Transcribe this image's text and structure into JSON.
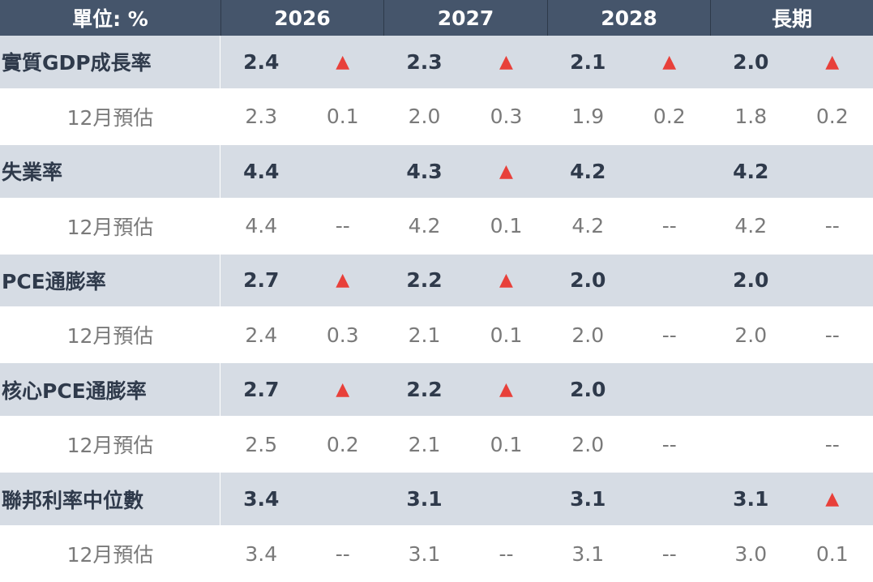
{
  "table": {
    "header": [
      "單位: %",
      "2026",
      "2027",
      "2028",
      "長期"
    ],
    "rows": [
      {
        "label": "實質GDP成長率",
        "cells": [
          "2.4",
          "▲",
          "2.3",
          "▲",
          "2.1",
          "▲",
          "2.0",
          "▲"
        ]
      },
      {
        "label": "12月預估",
        "cells": [
          "2.3",
          "0.1",
          "2.0",
          "0.3",
          "1.9",
          "0.2",
          "1.8",
          "0.2"
        ]
      },
      {
        "label": "失業率",
        "cells": [
          "4.4",
          null,
          "4.3",
          "▲",
          "4.2",
          null,
          "4.2",
          null
        ]
      },
      {
        "label": "12月預估",
        "cells": [
          "4.4",
          "--",
          "4.2",
          "0.1",
          "4.2",
          "--",
          "4.2",
          "--"
        ]
      },
      {
        "label": "PCE通膨率",
        "cells": [
          "2.7",
          "▲",
          "2.2",
          "▲",
          "2.0",
          null,
          "2.0",
          null
        ]
      },
      {
        "label": "12月預估",
        "cells": [
          "2.4",
          "0.3",
          "2.1",
          "0.1",
          "2.0",
          "--",
          "2.0",
          "--"
        ]
      },
      {
        "label": "核心PCE通膨率",
        "cells": [
          "2.7",
          "▲",
          "2.2",
          "▲",
          "2.0",
          null,
          null,
          null
        ]
      },
      {
        "label": "12月預估",
        "cells": [
          "2.5",
          "0.2",
          "2.1",
          "0.1",
          "2.0",
          "--",
          null,
          "--"
        ]
      },
      {
        "label": "聯邦利率中位數",
        "cells": [
          "3.4",
          null,
          "3.1",
          null,
          "3.1",
          null,
          "3.1",
          "▲"
        ]
      },
      {
        "label": "12月預估",
        "cells": [
          "3.4",
          "--",
          "3.1",
          "--",
          "3.1",
          "--",
          "3.0",
          "0.1"
        ]
      }
    ]
  }
}
